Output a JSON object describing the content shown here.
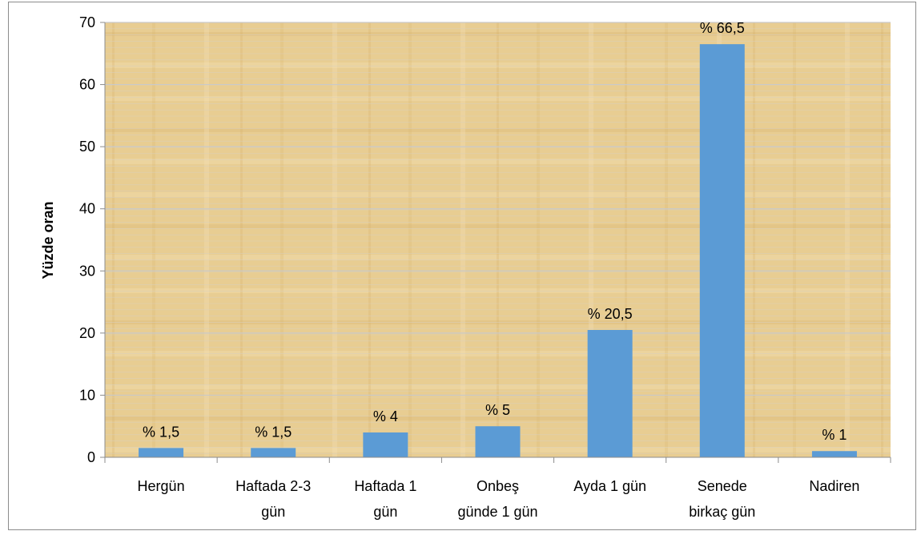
{
  "chart_data": {
    "type": "bar",
    "categories": [
      [
        "Hergün"
      ],
      [
        "Haftada 2-3",
        "gün"
      ],
      [
        "Haftada 1",
        "gün"
      ],
      [
        "Onbeş",
        "günde 1 gün"
      ],
      [
        "Ayda 1 gün"
      ],
      [
        "Senede",
        "birkaç gün"
      ],
      [
        "Nadiren"
      ]
    ],
    "values": [
      1.5,
      1.5,
      4,
      5,
      20.5,
      66.5,
      1
    ],
    "data_labels": [
      "% 1,5",
      "% 1,5",
      "% 4",
      "% 5",
      "% 20,5",
      "% 66,5",
      "% 1"
    ],
    "title": "",
    "xlabel": "",
    "ylabel": "Yüzde oran",
    "ylim": [
      0,
      70
    ],
    "yticks": [
      0,
      10,
      20,
      30,
      40,
      50,
      60,
      70
    ],
    "grid": true,
    "legend": "none",
    "colors": {
      "bar": "#5b9bd5",
      "plot_background": "#e6c98a",
      "grid": "#c9c9c9",
      "axis": "#8c8c8c"
    }
  }
}
